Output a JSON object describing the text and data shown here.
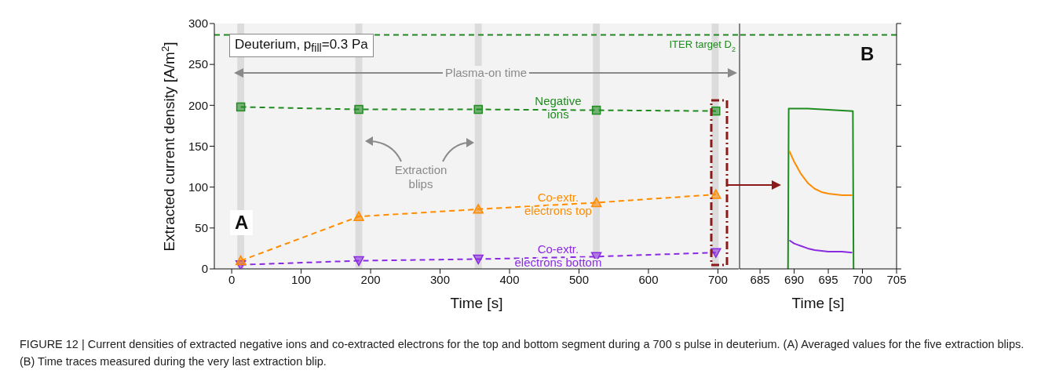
{
  "chart_data": [
    {
      "type": "line",
      "xlabel": "Time [s]",
      "ylabel": "Extracted current density [A/m$^{2}$]",
      "x": [
        13,
        183,
        355,
        525,
        697
      ],
      "series": [
        {
          "name": "Negative ions",
          "color": "#1e8c1e",
          "marker": "square",
          "values": [
            198,
            195,
            195,
            194,
            193
          ]
        },
        {
          "name": "Co-extr. electrons top",
          "color": "#ff8c00",
          "marker": "triangle",
          "values": [
            10,
            64,
            73,
            81,
            91
          ]
        },
        {
          "name": "Co-extr. electrons bottom",
          "color": "#8a2be2",
          "marker": "triangle-down",
          "values": [
            5,
            10,
            12,
            15,
            20
          ]
        }
      ],
      "xlim": [
        -25,
        730
      ],
      "xticks": [
        0,
        100,
        200,
        300,
        400,
        500,
        600,
        700
      ],
      "ylim": [
        0,
        300
      ],
      "yticks": [
        0,
        50,
        100,
        150,
        200,
        250,
        300
      ],
      "line_style": "dashed",
      "legend": false,
      "grid": false,
      "ref_lines": [
        {
          "axis": "y",
          "value": 286,
          "label": "ITER target D$_{2}$",
          "color": "#1e8c1e",
          "line_style": "dashed"
        }
      ],
      "bands": [
        {
          "axis": "x",
          "from": 8,
          "to": 18,
          "color": "#dcdcdc"
        },
        {
          "axis": "x",
          "from": 178,
          "to": 188,
          "color": "#dcdcdc"
        },
        {
          "axis": "x",
          "from": 350,
          "to": 360,
          "color": "#dcdcdc"
        },
        {
          "axis": "x",
          "from": 520,
          "to": 530,
          "color": "#dcdcdc"
        },
        {
          "axis": "x",
          "from": 691,
          "to": 701,
          "color": "#dcdcdc"
        }
      ],
      "annotations": [
        "Deuterium, p$_{fill}$=0.3 Pa",
        "Plasma-on time",
        "Extraction blips",
        "A",
        "FIGURE 12 | Current densities of extracted negative ions and co-extracted electrons for the top and bottom segment during a 700 s pulse in deuterium. (A) Averaged values for the five extraction blips. (B) Time traces measured during the very last extraction blip."
      ]
    },
    {
      "type": "line",
      "xlabel": "Time [s]",
      "series": [
        {
          "color": "#ff8c00",
          "x": [
            689.3,
            690,
            691,
            692,
            693,
            694,
            695,
            696,
            697,
            698.5
          ],
          "values": [
            144,
            131,
            116,
            105,
            98,
            94,
            92,
            91,
            90,
            90
          ]
        },
        {
          "color": "#8a2be2",
          "x": [
            689.3,
            690,
            691,
            692,
            693,
            694,
            695,
            697,
            698.5
          ],
          "values": [
            35,
            31,
            28,
            25,
            23,
            22,
            21,
            21,
            20
          ]
        },
        {
          "color": "#1e8c1e",
          "x": [
            689.1,
            689.2,
            690,
            692,
            694,
            696,
            698.6,
            698.7
          ],
          "values": [
            0,
            196,
            196,
            196,
            195,
            194,
            193,
            0
          ]
        }
      ],
      "xlim": [
        682,
        705
      ],
      "xticks": [
        685,
        690,
        695,
        700,
        705
      ],
      "ylim": [
        0,
        300
      ],
      "yticks": [
        {
          "value": 0,
          "label": null
        },
        {
          "value": 50,
          "label": null
        },
        {
          "value": 100,
          "label": null
        },
        {
          "value": 150,
          "label": null
        },
        {
          "value": 200,
          "label": null
        },
        {
          "value": 250,
          "label": null
        },
        {
          "value": 300,
          "label": null
        }
      ],
      "tick_labels": "x",
      "line_style": "solid",
      "marker": "none",
      "legend": false,
      "grid": false,
      "ref_lines": [
        {
          "axis": "y",
          "value": 286,
          "color": "#1e8c1e",
          "line_style": "dashed"
        }
      ],
      "annotations": [
        "B"
      ]
    }
  ]
}
